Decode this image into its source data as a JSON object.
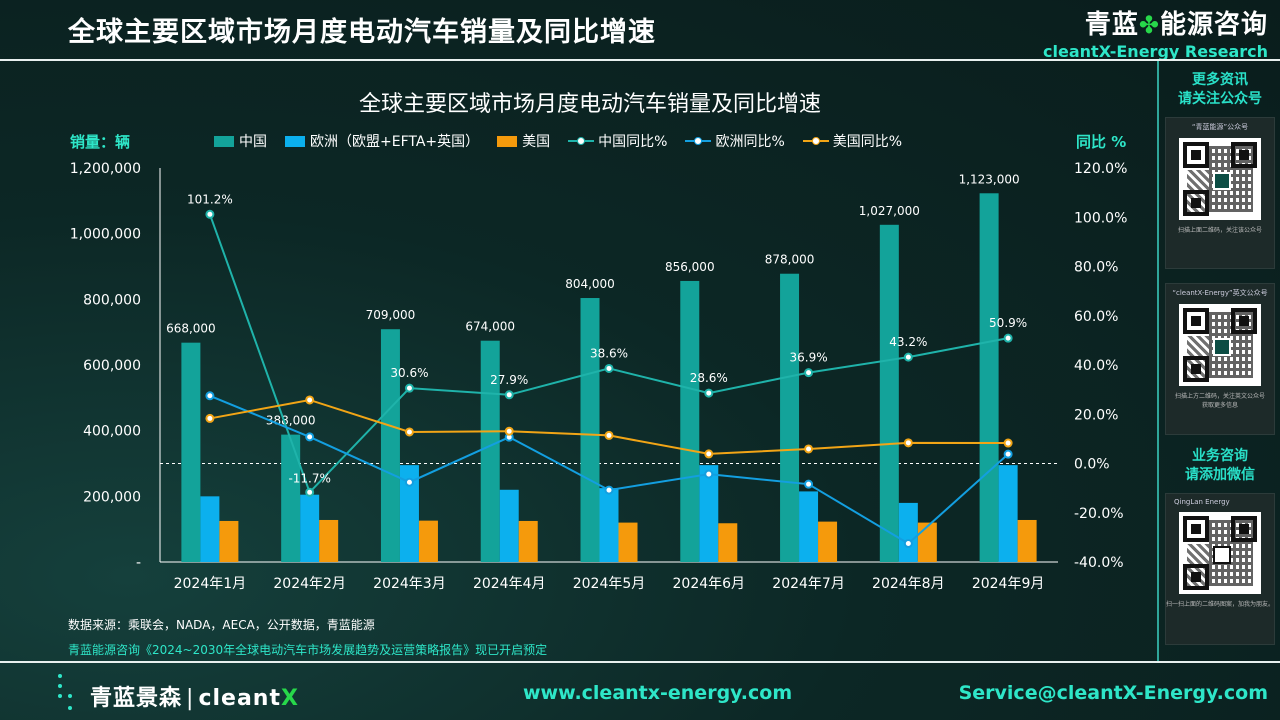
{
  "header": {
    "title": "全球主要区域市场月度电动汽车销量及同比增速",
    "brand_cn_left": "青蓝",
    "brand_cn_right": "能源咨询",
    "brand_en": "cleantX-Energy Research"
  },
  "sidebar": {
    "follow_heading_1": "更多资讯",
    "follow_heading_2": "请关注公众号",
    "card1_caption": "“青蓝能源”公众号",
    "card1_scan": "扫描上面二维码，关注该公众号",
    "card2_caption": "“cleantX-Energy”英文公众号",
    "card2_scan_1": "扫描上方二维码，关注英文公众号",
    "card2_scan_2": "获取更多信息",
    "biz_heading_1": "业务咨询",
    "biz_heading_2": "请添加微信",
    "card3_caption": "QingLan Energy",
    "card3_scan": "扫一扫上面的二维码图案，加我为朋友。"
  },
  "chart_data": {
    "type": "bar",
    "title": "全球主要区域市场月度电动汽车销量及同比增速",
    "ylabel": "销量：辆",
    "y2label": "同比 %",
    "categories": [
      "2024年1月",
      "2024年2月",
      "2024年3月",
      "2024年4月",
      "2024年5月",
      "2024年6月",
      "2024年7月",
      "2024年8月",
      "2024年9月"
    ],
    "ylim": [
      0,
      1200000
    ],
    "y2lim": [
      -40,
      120
    ],
    "y_ticks": [
      "-",
      "200,000",
      "400,000",
      "600,000",
      "800,000",
      "1,000,000",
      "1,200,000"
    ],
    "y2_ticks": [
      "-40.0%",
      "-20.0%",
      "0.0%",
      "20.0%",
      "40.0%",
      "60.0%",
      "80.0%",
      "100.0%",
      "120.0%"
    ],
    "series": [
      {
        "name": "中国",
        "type": "bar",
        "color": "#13a39a",
        "values": [
          668000,
          388000,
          709000,
          674000,
          804000,
          856000,
          878000,
          1027000,
          1123000
        ],
        "labels": [
          "668,000",
          "388,000",
          "709,000",
          "674,000",
          "804,000",
          "856,000",
          "878,000",
          "1,027,000",
          "1,123,000"
        ]
      },
      {
        "name": "欧洲（欧盟+EFTA+英国）",
        "type": "bar",
        "color": "#0cb0ee",
        "values": [
          200000,
          205000,
          295000,
          220000,
          225000,
          295000,
          215000,
          180000,
          295000
        ]
      },
      {
        "name": "美国",
        "type": "bar",
        "color": "#f59a0c",
        "values": [
          125000,
          128000,
          126000,
          125000,
          120000,
          118000,
          123000,
          120000,
          128000
        ]
      },
      {
        "name": "中国同比%",
        "type": "line",
        "color": "#1fb3aa",
        "values": [
          101.2,
          -11.7,
          30.6,
          27.9,
          38.6,
          28.6,
          36.9,
          43.2,
          50.9
        ],
        "labels": [
          "101.2%",
          "-11.7%",
          "30.6%",
          "27.9%",
          "38.6%",
          "28.6%",
          "36.9%",
          "43.2%",
          "50.9%"
        ]
      },
      {
        "name": "欧洲同比%",
        "type": "line",
        "color": "#139fe0",
        "values": [
          27.5,
          10.8,
          -7.6,
          10.7,
          -10.8,
          -4.3,
          -8.4,
          -32.5,
          3.8
        ]
      },
      {
        "name": "美国同比%",
        "type": "line",
        "color": "#f2a516",
        "values": [
          18.3,
          25.8,
          12.8,
          13.1,
          11.4,
          3.9,
          5.9,
          8.4,
          8.3
        ]
      }
    ],
    "grid": false,
    "legend": "top"
  },
  "footer": {
    "source": "数据来源：乘联会，NADA，AECA，公开数据，青蓝能源",
    "promo": "青蓝能源咨询《2024~2030年全球电动汽车市场发展趋势及运营策略报告》现已开启预定",
    "brand_cn": "青蓝景森",
    "brand_sep": "|",
    "brand_en": "cleant",
    "brand_x": "X",
    "website": "www.cleantx-energy.com",
    "email": "Service@cleantX-Energy.com"
  }
}
